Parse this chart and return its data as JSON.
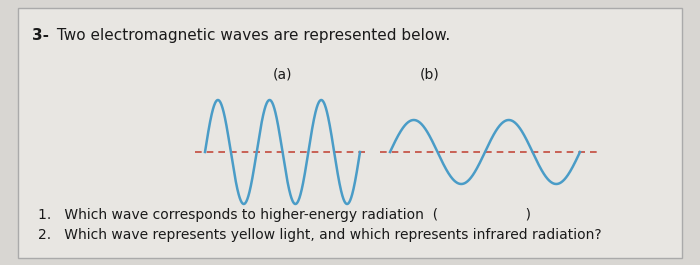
{
  "background_color": "#d8d6d2",
  "card_color": "#e8e6e2",
  "wave_color": "#4a9cc7",
  "baseline_color": "#c0392b",
  "title_bold": "3-",
  "title_text": " Two electromagnetic waves are represented below.",
  "label_a": "(a)",
  "label_b": "(b)",
  "question1": "1.   Which wave corresponds to higher-energy radiation  (                    )",
  "question2": "2.   Which wave represents yellow light, and which represents infrared radiation?",
  "wave_a_amplitude": 1.0,
  "wave_a_freq": 3.0,
  "wave_b_amplitude": 0.55,
  "wave_b_freq": 2.0,
  "text_color": "#1a1a1a"
}
